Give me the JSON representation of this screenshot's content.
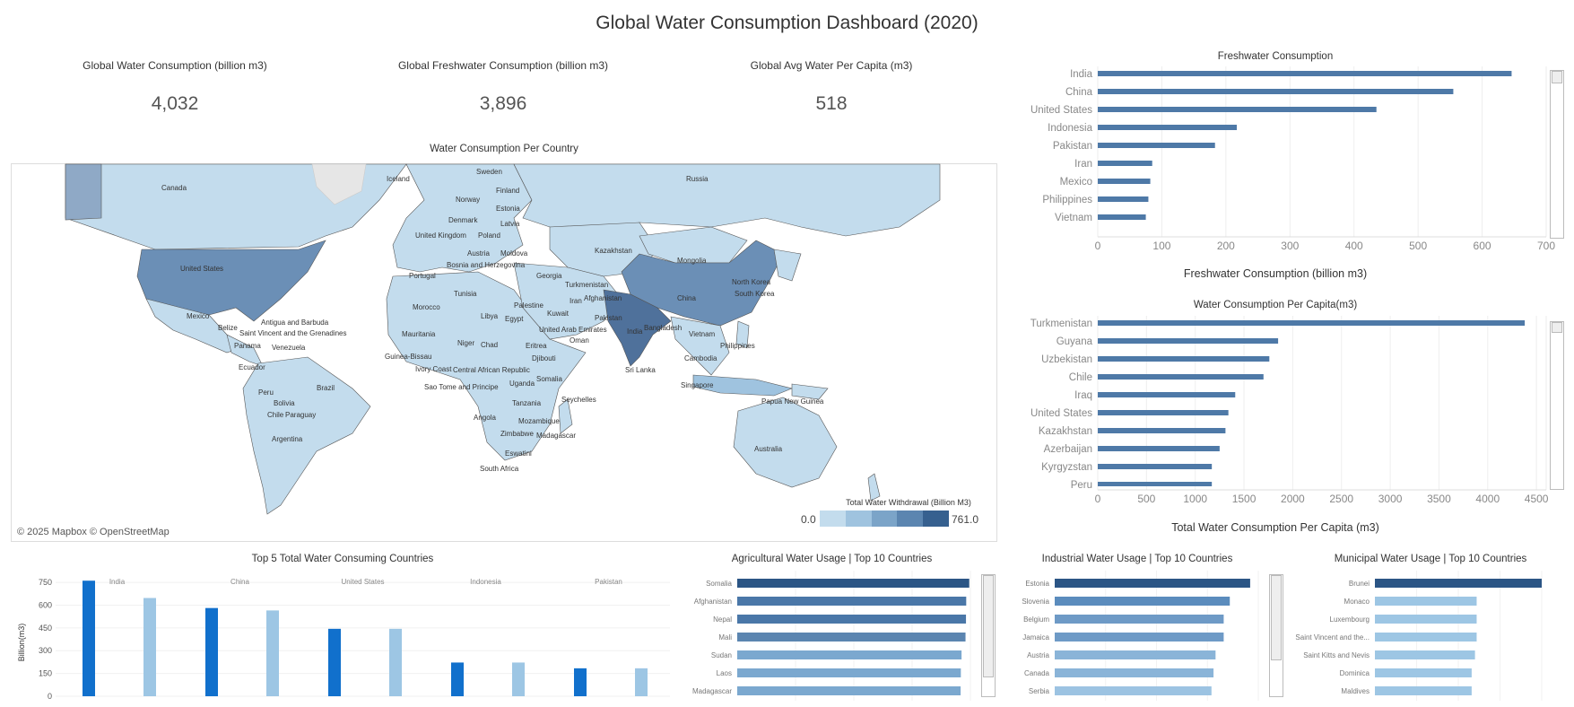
{
  "title": "Global Water Consumption Dashboard (2020)",
  "kpis": [
    {
      "label": "Global Water Consumption (billion m3)",
      "value": "4,032"
    },
    {
      "label": "Global Freshwater Consumption (billion m3)",
      "value": "3,896"
    },
    {
      "label": "Global Avg Water Per Capita (m3)",
      "value": "518"
    }
  ],
  "map": {
    "title": "Water Consumption Per Country",
    "attribution": "© 2025 Mapbox © OpenStreetMap",
    "legend_title": "Total Water Withdrawal (Billion M3)",
    "legend_min": "0.0",
    "legend_max": "761.0",
    "legend_colors": [
      "#c3dced",
      "#9fc3df",
      "#7ba4c8",
      "#5b85b0",
      "#36608f"
    ],
    "labels": [
      "Canada",
      "United States",
      "Mexico",
      "Belize",
      "Panama",
      "Ecuador",
      "Peru",
      "Bolivia",
      "Chile",
      "Paraguay",
      "Argentina",
      "Brazil",
      "Venezuela",
      "Antigua and Barbuda",
      "Saint Vincent and the Grenadines",
      "Iceland",
      "Sweden",
      "Finland",
      "Norway",
      "Denmark",
      "Estonia",
      "Latvia",
      "United Kingdom",
      "Poland",
      "Austria",
      "Moldova",
      "Bosnia and Herzegovina",
      "Portugal",
      "Tunisia",
      "Morocco",
      "Mauritania",
      "Niger",
      "Libya",
      "Egypt",
      "Chad",
      "Eritrea",
      "Djibouti",
      "Guinea-Bissau",
      "Ivory Coast",
      "Sao Tome and Principe",
      "Central African Republic",
      "Uganda",
      "Somalia",
      "Angola",
      "Tanzania",
      "Mozambique",
      "Zimbabwe",
      "Madagascar",
      "Eswatini",
      "South Africa",
      "Seychelles",
      "Russia",
      "Kazakhstan",
      "Mongolia",
      "China",
      "Turkmenistan",
      "Afghanistan",
      "Iran",
      "Kuwait",
      "Palestine",
      "Georgia",
      "United Arab Emirates",
      "Oman",
      "Pakistan",
      "India",
      "Bangladesh",
      "Sri Lanka",
      "Vietnam",
      "Cambodia",
      "North Korea",
      "South Korea",
      "Philippines",
      "Singapore",
      "Papua New Guinea",
      "Australia"
    ]
  },
  "freshwater_chart": {
    "title": "Freshwater Consumption",
    "xlabel": "Freshwater Consumption (billion m3)",
    "ticks": [
      "0",
      "100",
      "200",
      "300",
      "400",
      "500",
      "600",
      "700"
    ]
  },
  "percapita_chart": {
    "title": "Water Consumption Per Capita(m3)",
    "xlabel": "Total Water Consumption Per Capita (m3)",
    "ticks": [
      "0",
      "500",
      "1000",
      "1500",
      "2000",
      "2500",
      "3000",
      "3500",
      "4000",
      "4500"
    ],
    "cut_label": "Peru"
  },
  "top5_chart": {
    "title": "Top 5 Total Water Consuming Countries",
    "ylabel": "Billion(m3)",
    "ticks": [
      "0",
      "150",
      "300",
      "450",
      "600",
      "750"
    ]
  },
  "agri_chart": {
    "title": "Agricultural Water Usage | Top 10 Countries"
  },
  "ind_chart": {
    "title": "Industrial Water Usage | Top 10 Countries"
  },
  "muni_chart": {
    "title": "Municipal Water Usage | Top 10 Countries"
  },
  "chart_data": [
    {
      "type": "bar",
      "title": "Freshwater Consumption",
      "xlabel": "Freshwater Consumption (billion m3)",
      "orientation": "horizontal",
      "categories": [
        "India",
        "China",
        "United States",
        "Indonesia",
        "Pakistan",
        "Iran",
        "Mexico",
        "Philippines",
        "Vietnam"
      ],
      "values": [
        646,
        555,
        435,
        217,
        183,
        85,
        82,
        79,
        75
      ],
      "xlim": [
        0,
        700
      ],
      "color": "#4e79a7"
    },
    {
      "type": "bar",
      "title": "Water Consumption Per Capita(m3)",
      "xlabel": "Total Water Consumption Per Capita (m3)",
      "orientation": "horizontal",
      "categories": [
        "Turkmenistan",
        "Guyana",
        "Uzbekistan",
        "Chile",
        "Iraq",
        "United States",
        "Kazakhstan",
        "Azerbaijan",
        "Kyrgyzstan",
        "Peru"
      ],
      "values": [
        4380,
        1850,
        1760,
        1700,
        1410,
        1340,
        1310,
        1250,
        1170,
        1170
      ],
      "xlim": [
        0,
        4600
      ],
      "color": "#4e79a7"
    },
    {
      "type": "bar",
      "title": "Top 5 Total Water Consuming Countries",
      "ylabel": "Billion(m3)",
      "categories": [
        "India",
        "China",
        "United States",
        "Indonesia",
        "Pakistan"
      ],
      "series": [
        {
          "values": [
            761,
            581,
            444,
            222,
            184
          ],
          "color": "#1170cc"
        },
        {
          "values": [
            647,
            565,
            444,
            222,
            184
          ],
          "color": "#9dc6e4"
        }
      ],
      "ylim": [
        0,
        780
      ]
    },
    {
      "type": "bar",
      "title": "Agricultural Water Usage | Top 10 Countries",
      "orientation": "horizontal",
      "categories": [
        "Somalia",
        "Afghanistan",
        "Nepal",
        "Mali",
        "Sudan",
        "Laos",
        "Madagascar"
      ],
      "values": [
        99.5,
        98.2,
        98.1,
        97.9,
        96.2,
        95.9,
        95.8
      ],
      "xlim": [
        0,
        100
      ],
      "colors": [
        "#2b5585",
        "#4a77a8",
        "#4a77a8",
        "#5b85b0",
        "#7ba8cf",
        "#7ba8cf",
        "#7ba8cf"
      ]
    },
    {
      "type": "bar",
      "title": "Industrial Water Usage | Top 10 Countries",
      "orientation": "horizontal",
      "categories": [
        "Estonia",
        "Slovenia",
        "Belgium",
        "Jamaica",
        "Austria",
        "Canada",
        "Serbia"
      ],
      "values": [
        96,
        86,
        83,
        83,
        79,
        78,
        77
      ],
      "xlim": [
        0,
        100
      ],
      "colors": [
        "#2b5585",
        "#5b8cbd",
        "#6e9ac6",
        "#6e9ac6",
        "#8ab4d8",
        "#8ab4d8",
        "#9cc3e2"
      ]
    },
    {
      "type": "bar",
      "title": "Municipal Water Usage | Top 10 Countries",
      "orientation": "horizontal",
      "categories": [
        "Brunei",
        "Monaco",
        "Luxembourg",
        "Saint Vincent and the...",
        "Saint Kitts and Nevis",
        "Dominica",
        "Maldives"
      ],
      "values": [
        100,
        61,
        61,
        61,
        60,
        58,
        58
      ],
      "xlim": [
        0,
        100
      ],
      "colors": [
        "#2b5585",
        "#9dc6e4",
        "#9dc6e4",
        "#9dc6e4",
        "#9dc6e4",
        "#9dc6e4",
        "#9dc6e4"
      ]
    }
  ]
}
